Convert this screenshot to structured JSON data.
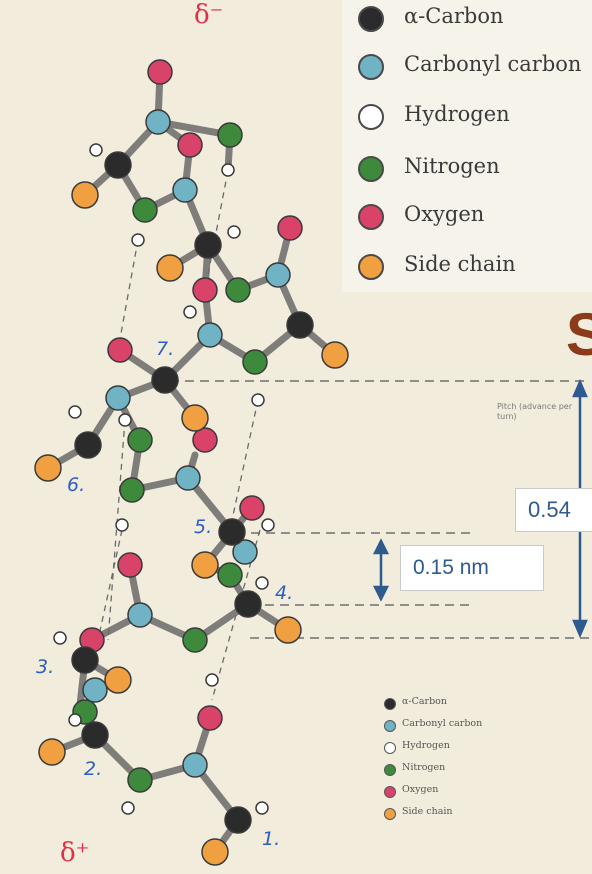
{
  "legend_top": {
    "items": [
      {
        "label": "α-Carbon",
        "color": "#2b2b2b"
      },
      {
        "label": "Carbonyl carbon",
        "color": "#6fb3c4"
      },
      {
        "label": "Hydrogen",
        "color": "#ffffff"
      },
      {
        "label": "Nitrogen",
        "color": "#3d8a3d"
      },
      {
        "label": "Oxygen",
        "color": "#d9436a"
      },
      {
        "label": "Side chain",
        "color": "#f0a040"
      }
    ]
  },
  "legend_small": {
    "items": [
      {
        "label": "α-Carbon",
        "color": "#2b2b2b"
      },
      {
        "label": "Carbonyl carbon",
        "color": "#6fb3c4"
      },
      {
        "label": "Hydrogen",
        "color": "#ffffff"
      },
      {
        "label": "Nitrogen",
        "color": "#3d8a3d"
      },
      {
        "label": "Oxygen",
        "color": "#d9436a"
      },
      {
        "label": "Side chain",
        "color": "#f0a040"
      }
    ]
  },
  "annotations": {
    "pitch_box": "0.54",
    "rise_box": "0.15 nm",
    "pitch_note": "Pitch (advance per turn)",
    "title_fragment": "S",
    "delta_minus": "δ⁻",
    "delta_plus": "δ⁺"
  },
  "residue_numbers": [
    "1.",
    "2.",
    "3.",
    "4.",
    "5.",
    "6.",
    "7."
  ]
}
